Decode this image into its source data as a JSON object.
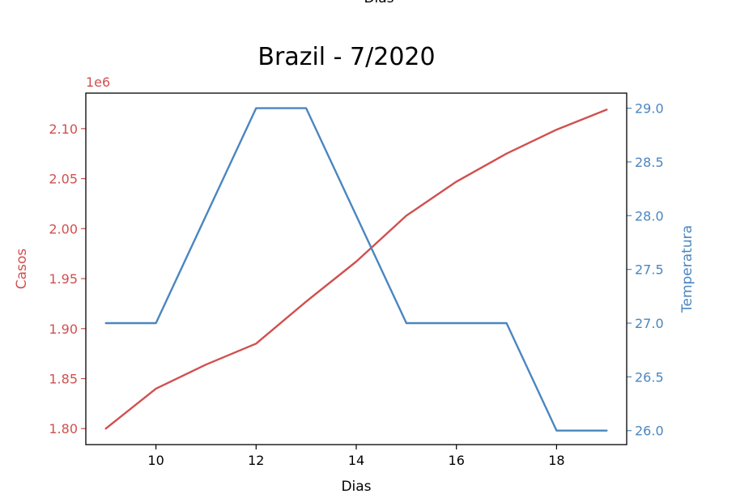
{
  "chart_data": {
    "type": "line",
    "title": "Brazil - 7/2020",
    "top_label": "Dias",
    "xlabel": "Dias",
    "x_ticks": [
      10,
      12,
      14,
      16,
      18
    ],
    "xlim": [
      8.6,
      19.4
    ],
    "left_axis": {
      "label": "Casos",
      "scale_label": "1e6",
      "ticks": [
        1.8,
        1.85,
        1.9,
        1.95,
        2.0,
        2.05,
        2.1
      ],
      "tick_labels": [
        "1.80",
        "1.85",
        "1.90",
        "1.95",
        "2.00",
        "2.05",
        "2.10"
      ],
      "ylim": [
        1.784,
        2.1355
      ],
      "color": "#d0504f"
    },
    "right_axis": {
      "label": "Temperatura",
      "ticks": [
        26.0,
        26.5,
        27.0,
        27.5,
        28.0,
        28.5,
        29.0
      ],
      "tick_labels": [
        "26.0",
        "26.5",
        "27.0",
        "27.5",
        "28.0",
        "28.5",
        "29.0"
      ],
      "ylim": [
        25.87,
        29.14
      ],
      "color": "#4a86c0"
    },
    "series": [
      {
        "axis": "left",
        "x": [
          9,
          10,
          11,
          12,
          13,
          14,
          15,
          16,
          17,
          18,
          19
        ],
        "values": [
          1.8,
          1.84,
          1.864,
          1.885,
          1.927,
          1.967,
          2.013,
          2.047,
          2.075,
          2.099,
          2.119
        ],
        "color": "#d0504f"
      },
      {
        "axis": "right",
        "x": [
          9,
          10,
          11,
          12,
          13,
          14,
          15,
          16,
          17,
          18,
          19
        ],
        "values": [
          27,
          27,
          28,
          29,
          29,
          28,
          27,
          27,
          27,
          26,
          26
        ],
        "color": "#4a86c0"
      }
    ],
    "grid": false
  }
}
